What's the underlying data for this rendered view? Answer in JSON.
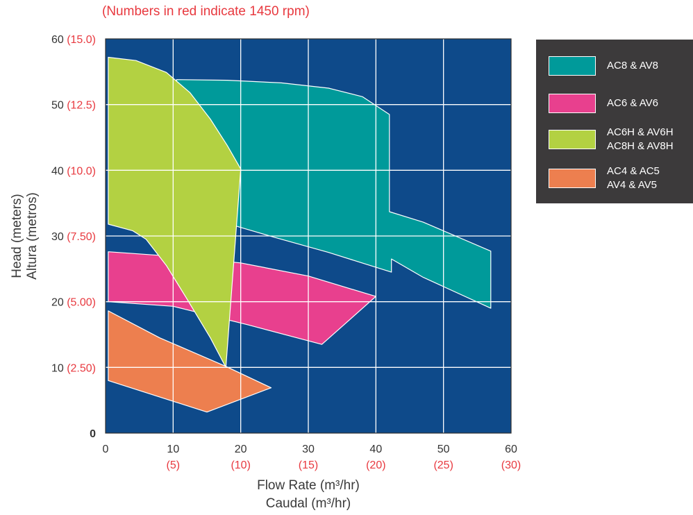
{
  "note": "(Numbers in red indicate 1450 rpm)",
  "colors": {
    "plot_background": "#0e4a8a",
    "grid": "#ffffff",
    "red_text": "#e8393f",
    "legend_background": "#3c3a3b"
  },
  "chart_data": {
    "type": "area",
    "x_axis": {
      "label_line1": "Flow Rate (m³/hr)",
      "label_line2": "Caudal (m³/hr)",
      "range": [
        0,
        60
      ],
      "ticks": [
        {
          "value": 0,
          "label": "0",
          "label_1450": ""
        },
        {
          "value": 10,
          "label": "10",
          "label_1450": "(5)"
        },
        {
          "value": 20,
          "label": "20",
          "label_1450": "(10)"
        },
        {
          "value": 30,
          "label": "30",
          "label_1450": "(15)"
        },
        {
          "value": 40,
          "label": "40",
          "label_1450": "(20)"
        },
        {
          "value": 50,
          "label": "50",
          "label_1450": "(25)"
        },
        {
          "value": 60,
          "label": "60",
          "label_1450": "(30)"
        }
      ]
    },
    "y_axis": {
      "label_line1": "Head (meters)",
      "label_line2": "Altura (metros)",
      "range": [
        0,
        60
      ],
      "ticks": [
        {
          "value": 0,
          "label": "0",
          "label_1450": ""
        },
        {
          "value": 10,
          "label": "10",
          "label_1450": "(2.50)"
        },
        {
          "value": 20,
          "label": "20",
          "label_1450": "(5.00)"
        },
        {
          "value": 30,
          "label": "30",
          "label_1450": "(7.50)"
        },
        {
          "value": 40,
          "label": "40",
          "label_1450": "(10.0)"
        },
        {
          "value": 50,
          "label": "50",
          "label_1450": "(12.5)"
        },
        {
          "value": 60,
          "label": "60",
          "label_1450": "(15.0)"
        }
      ]
    },
    "grid": true,
    "legend_position": "right",
    "series": [
      {
        "name": "AC8 & AV8",
        "label_lines": [
          "AC8 & AV8"
        ],
        "color": "#009a9a",
        "region": [
          [
            10.5,
            53.8
          ],
          [
            18,
            53.7
          ],
          [
            26,
            53.3
          ],
          [
            33,
            52.5
          ],
          [
            38,
            51.2
          ],
          [
            42,
            48.5
          ],
          [
            42,
            33.7
          ],
          [
            47,
            32.1
          ],
          [
            57,
            27.7
          ],
          [
            57,
            19
          ],
          [
            47,
            23.7
          ],
          [
            42.3,
            26.5
          ],
          [
            42.3,
            24.5
          ],
          [
            33,
            27.5
          ],
          [
            25,
            29.8
          ],
          [
            16,
            32.5
          ],
          [
            10.5,
            34.2
          ]
        ]
      },
      {
        "name": "AC6 & AV6",
        "label_lines": [
          "AC6 & AV6"
        ],
        "color": "#e8408e",
        "region": [
          [
            0.4,
            27.6
          ],
          [
            10,
            26.9
          ],
          [
            20,
            25.9
          ],
          [
            30,
            23.9
          ],
          [
            40,
            20.8
          ],
          [
            32,
            13.5
          ],
          [
            21,
            16.5
          ],
          [
            10,
            19.3
          ],
          [
            0.4,
            20
          ]
        ]
      },
      {
        "name": "AC6H & AV6H / AC8H & AV8H",
        "label_lines": [
          "AC6H & AV6H",
          "AC8H & AV8H"
        ],
        "color": "#b3d142",
        "region": [
          [
            0.4,
            57.2
          ],
          [
            4.5,
            56.7
          ],
          [
            9,
            54.9
          ],
          [
            12.5,
            51.8
          ],
          [
            15.5,
            47.8
          ],
          [
            18,
            43.8
          ],
          [
            20,
            40.2
          ],
          [
            17.8,
            10
          ],
          [
            15.5,
            14.5
          ],
          [
            12,
            20.5
          ],
          [
            9,
            25.5
          ],
          [
            6,
            29.5
          ],
          [
            4,
            30.8
          ],
          [
            0.4,
            31.8
          ]
        ]
      },
      {
        "name": "AC4 & AC5 / AV4 & AV5",
        "label_lines": [
          "AC4 & AC5",
          "AV4 & AV5"
        ],
        "color": "#ed7f4f",
        "region": [
          [
            0.4,
            18.6
          ],
          [
            8,
            14.5
          ],
          [
            17.7,
            10.2
          ],
          [
            24.5,
            6.9
          ],
          [
            15,
            3.2
          ],
          [
            0.4,
            8
          ]
        ]
      }
    ]
  }
}
